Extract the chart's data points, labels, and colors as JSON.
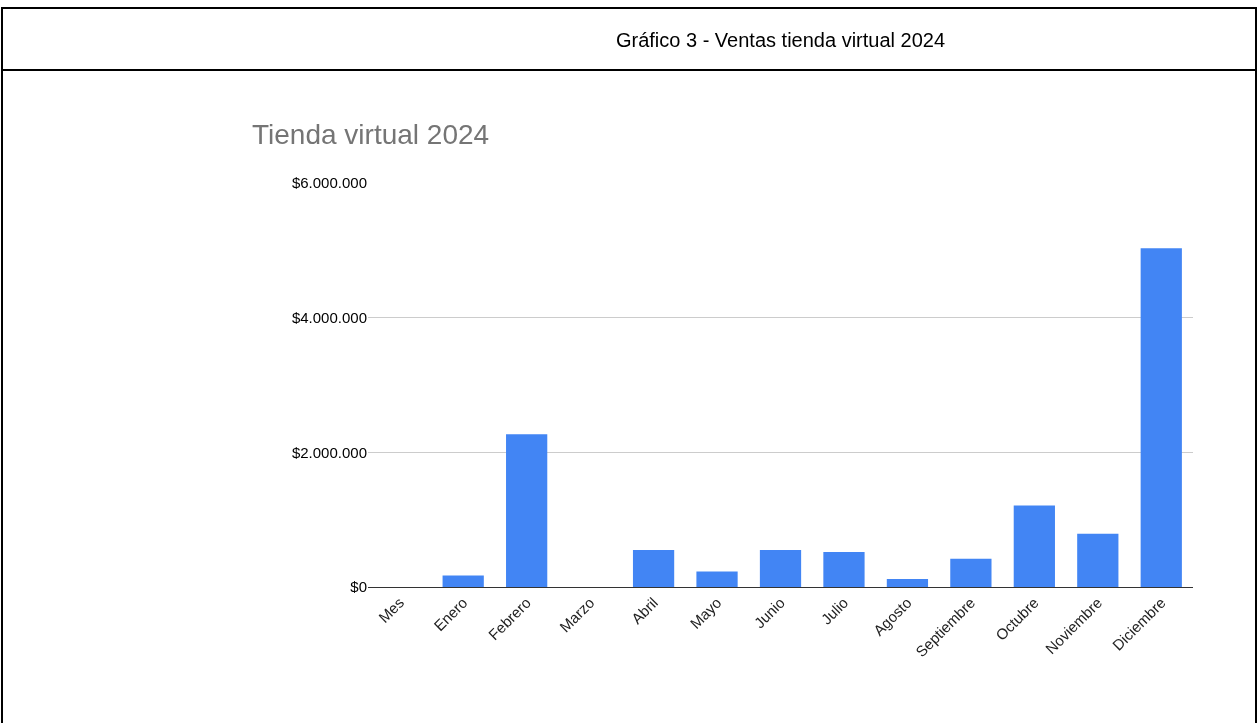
{
  "chart_data": {
    "type": "bar",
    "title": "Gráfico 3 - Ventas tienda virtual 2024",
    "subtitle": "Tienda virtual 2024",
    "categories": [
      "Mes",
      "Enero",
      "Febrero",
      "Marzo",
      "Abril",
      "Mayo",
      "Junio",
      "Julio",
      "Agosto",
      "Septiembre",
      "Octubre",
      "Noviembre",
      "Diciembre"
    ],
    "values": [
      null,
      170000,
      2270000,
      null,
      550000,
      230000,
      550000,
      520000,
      120000,
      420000,
      1210000,
      790000,
      5030000
    ],
    "color": "#4285f4",
    "ylim": [
      0,
      6000000
    ],
    "yticks": [
      {
        "value": 0,
        "label": "$0"
      },
      {
        "value": 2000000,
        "label": "$2.000.000"
      },
      {
        "value": 4000000,
        "label": "$4.000.000"
      },
      {
        "value": 6000000,
        "label": "$6.000.000"
      }
    ],
    "grid": "y",
    "legend": false
  }
}
